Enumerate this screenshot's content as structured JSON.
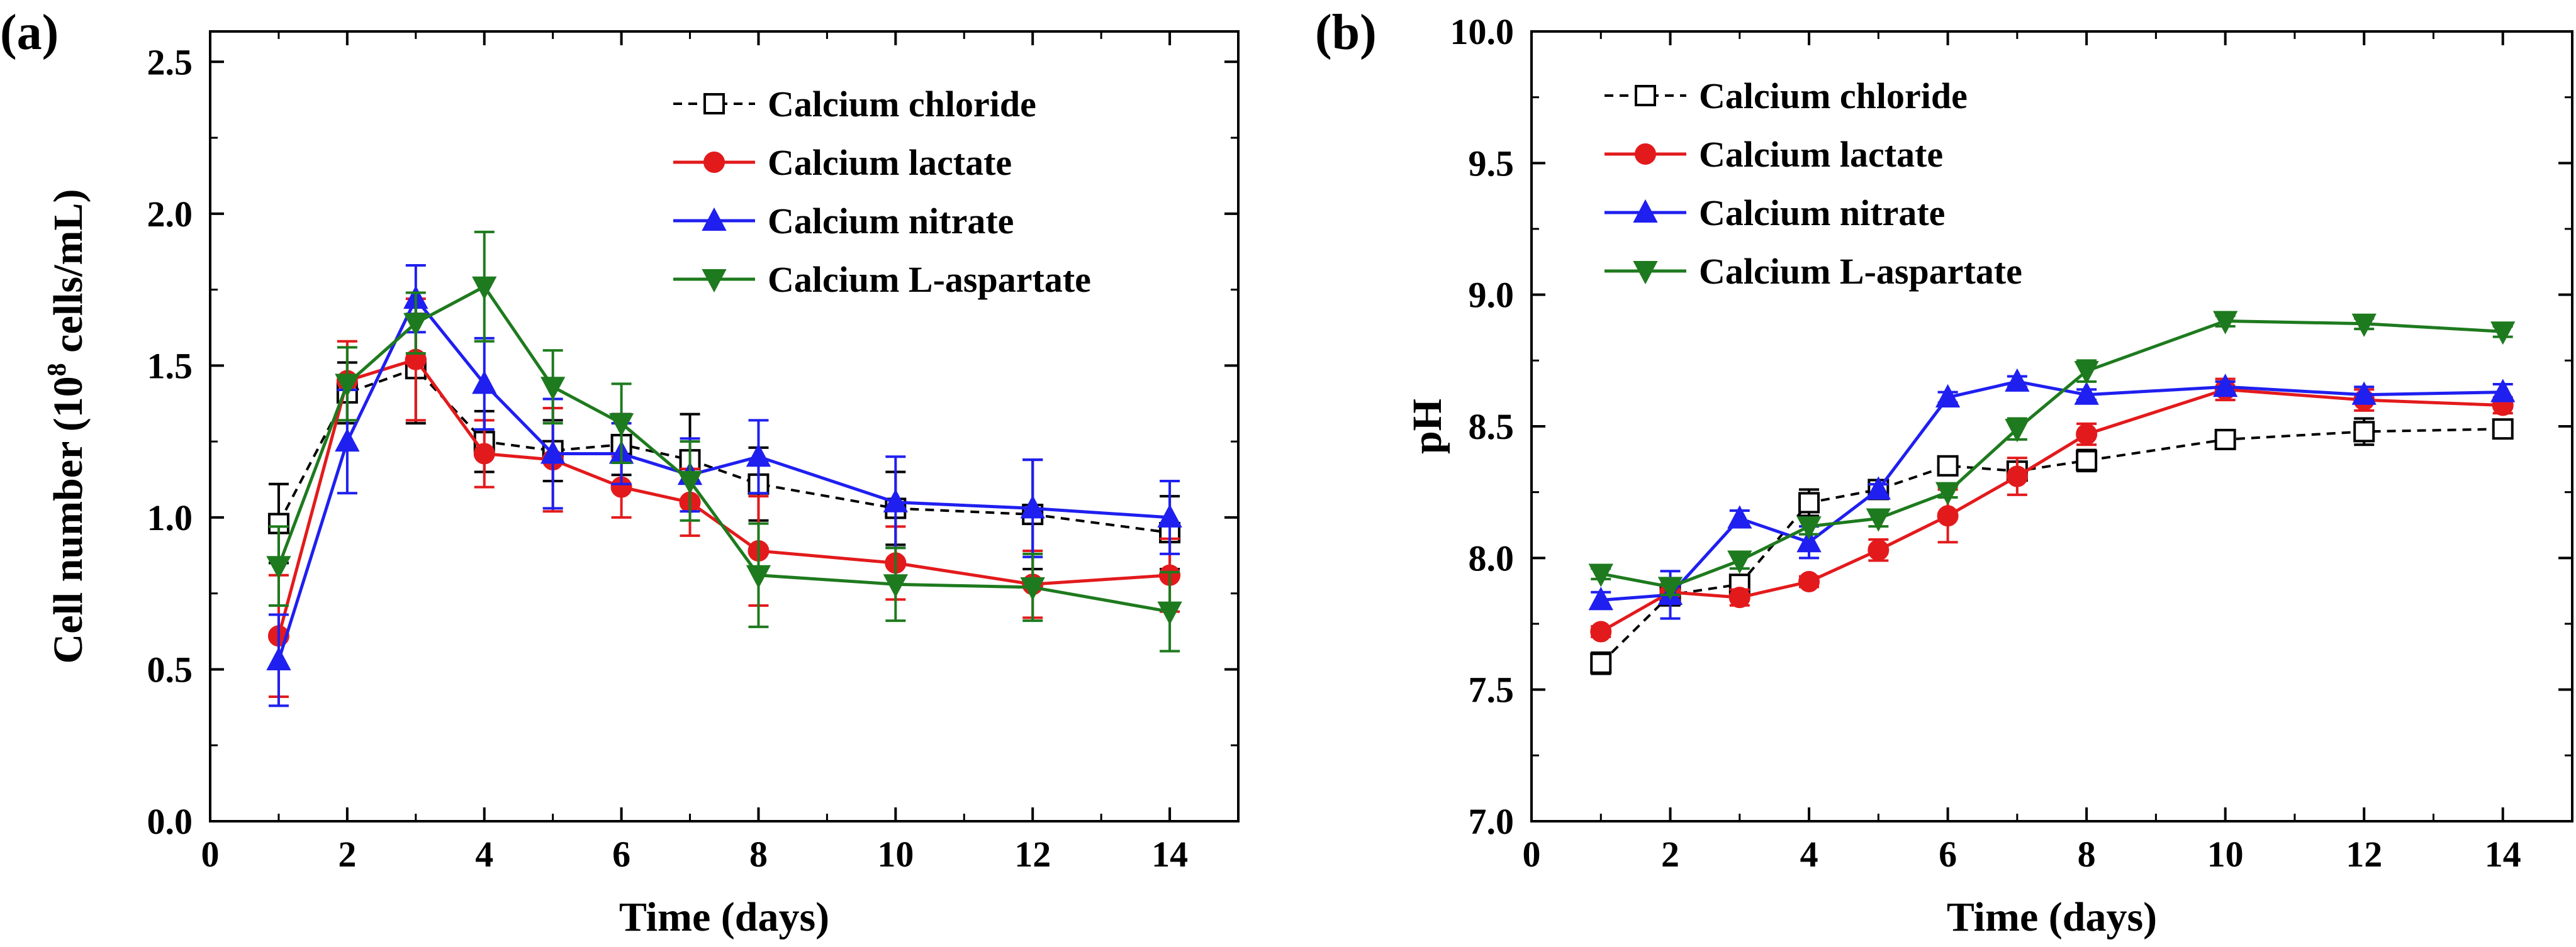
{
  "colors": {
    "calcium_chloride": "#000000",
    "calcium_lactate": "#e31a1c",
    "calcium_nitrate": "#1f1ff0",
    "calcium_l_aspartate": "#1e7a1e"
  },
  "chart_data": [
    {
      "type": "line",
      "panel_label": "(a)",
      "title": "",
      "xlabel": "Time (days)",
      "ylabel_prefix": "Cell number (10",
      "ylabel_sup": "8",
      "ylabel_suffix": " cells/mL)",
      "xlim": [
        0,
        15
      ],
      "ylim": [
        0,
        2.6
      ],
      "xticks": [
        0,
        2,
        4,
        6,
        8,
        10,
        12,
        14
      ],
      "xtick_labels": [
        "0",
        "2",
        "4",
        "6",
        "8",
        "10",
        "12",
        "14"
      ],
      "yticks": [
        0,
        0.5,
        1.0,
        1.5,
        2.0,
        2.5
      ],
      "ytick_labels": [
        "0.0",
        "0.5",
        "1.0",
        "1.5",
        "2.0",
        "2.5"
      ],
      "legend_position": "top-right",
      "series": [
        {
          "name": "Calcium chloride",
          "key": "calcium_chloride",
          "marker": "square-open",
          "dash": true,
          "x": [
            1,
            2,
            3,
            4,
            5,
            6,
            7,
            8,
            10,
            12,
            14
          ],
          "y": [
            0.98,
            1.41,
            1.49,
            1.25,
            1.22,
            1.24,
            1.19,
            1.11,
            1.03,
            1.01,
            0.95
          ],
          "err": [
            0.13,
            0.1,
            0.18,
            0.1,
            0.1,
            0.1,
            0.15,
            0.12,
            0.12,
            0.18,
            0.12
          ]
        },
        {
          "name": "Calcium lactate",
          "key": "calcium_lactate",
          "marker": "circle",
          "dash": false,
          "x": [
            1,
            2,
            3,
            4,
            5,
            6,
            7,
            8,
            10,
            12,
            14
          ],
          "y": [
            0.61,
            1.45,
            1.52,
            1.21,
            1.19,
            1.1,
            1.05,
            0.89,
            0.85,
            0.78,
            0.81
          ],
          "err": [
            0.2,
            0.13,
            0.2,
            0.11,
            0.17,
            0.1,
            0.11,
            0.18,
            0.12,
            0.11,
            0.12
          ]
        },
        {
          "name": "Calcium nitrate",
          "key": "calcium_nitrate",
          "marker": "triangle-up",
          "dash": false,
          "x": [
            1,
            2,
            3,
            4,
            5,
            6,
            7,
            8,
            10,
            12,
            14
          ],
          "y": [
            0.53,
            1.25,
            1.72,
            1.44,
            1.21,
            1.21,
            1.14,
            1.2,
            1.05,
            1.03,
            1.0
          ],
          "err": [
            0.15,
            0.17,
            0.11,
            0.15,
            0.18,
            0.1,
            0.12,
            0.12,
            0.15,
            0.16,
            0.12
          ]
        },
        {
          "name": "Calcium L-aspartate",
          "key": "calcium_l_aspartate",
          "marker": "triangle-down",
          "dash": false,
          "x": [
            1,
            2,
            3,
            4,
            5,
            6,
            7,
            8,
            10,
            12,
            14
          ],
          "y": [
            0.84,
            1.44,
            1.64,
            1.76,
            1.43,
            1.31,
            1.12,
            0.81,
            0.78,
            0.77,
            0.69
          ],
          "err": [
            0.13,
            0.12,
            0.1,
            0.18,
            0.12,
            0.13,
            0.13,
            0.17,
            0.12,
            0.11,
            0.13
          ]
        }
      ]
    },
    {
      "type": "line",
      "panel_label": "(b)",
      "title": "",
      "xlabel": "Time (days)",
      "ylabel": "pH",
      "xlim": [
        0,
        15
      ],
      "ylim": [
        7.0,
        10.0
      ],
      "xticks": [
        0,
        2,
        4,
        6,
        8,
        10,
        12,
        14
      ],
      "xtick_labels": [
        "0",
        "2",
        "4",
        "6",
        "8",
        "10",
        "12",
        "14"
      ],
      "yticks": [
        7.0,
        7.5,
        8.0,
        8.5,
        9.0,
        9.5,
        10.0
      ],
      "ytick_labels": [
        "7.0",
        "7.5",
        "8.0",
        "8.5",
        "9.0",
        "9.5",
        "10.0"
      ],
      "legend_position": "top-left",
      "series": [
        {
          "name": "Calcium chloride",
          "key": "calcium_chloride",
          "marker": "square-open",
          "dash": true,
          "x": [
            1,
            2,
            3,
            4,
            5,
            6,
            7,
            8,
            10,
            12,
            14
          ],
          "y": [
            7.6,
            7.86,
            7.9,
            8.21,
            8.26,
            8.35,
            8.33,
            8.37,
            8.45,
            8.48,
            8.49
          ],
          "err": [
            0.04,
            0.04,
            0.03,
            0.05,
            0.03,
            0.02,
            0.03,
            0.04,
            0.03,
            0.05,
            0.03
          ]
        },
        {
          "name": "Calcium lactate",
          "key": "calcium_lactate",
          "marker": "circle",
          "dash": false,
          "x": [
            1,
            2,
            3,
            4,
            5,
            6,
            7,
            8,
            10,
            12,
            14
          ],
          "y": [
            7.72,
            7.87,
            7.85,
            7.91,
            8.03,
            8.16,
            8.31,
            8.47,
            8.64,
            8.6,
            8.58
          ],
          "err": [
            0.02,
            0.03,
            0.03,
            0.02,
            0.04,
            0.1,
            0.07,
            0.04,
            0.04,
            0.04,
            0.03
          ]
        },
        {
          "name": "Calcium nitrate",
          "key": "calcium_nitrate",
          "marker": "triangle-up",
          "dash": false,
          "x": [
            1,
            2,
            3,
            4,
            5,
            6,
            7,
            8,
            10,
            12,
            14
          ],
          "y": [
            7.84,
            7.86,
            8.15,
            8.06,
            8.26,
            8.61,
            8.67,
            8.62,
            8.65,
            8.62,
            8.63
          ],
          "err": [
            0.03,
            0.09,
            0.03,
            0.06,
            0.02,
            0.02,
            0.02,
            0.02,
            0.02,
            0.03,
            0.03
          ]
        },
        {
          "name": "Calcium L-aspartate",
          "key": "calcium_l_aspartate",
          "marker": "triangle-down",
          "dash": false,
          "x": [
            1,
            2,
            3,
            4,
            5,
            6,
            7,
            8,
            10,
            12,
            14
          ],
          "y": [
            7.94,
            7.89,
            7.99,
            8.12,
            8.15,
            8.25,
            8.49,
            8.71,
            8.9,
            8.89,
            8.86
          ],
          "err": [
            0.02,
            0.03,
            0.03,
            0.03,
            0.03,
            0.02,
            0.04,
            0.04,
            0.02,
            0.02,
            0.02
          ]
        }
      ]
    }
  ]
}
